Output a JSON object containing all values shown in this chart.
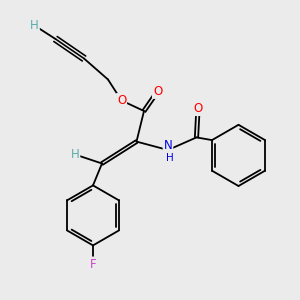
{
  "background_color": "#ebebeb",
  "atom_colors": {
    "C": "#000000",
    "H": "#5aacac",
    "O": "#ff0000",
    "N": "#0000ee",
    "F": "#cc44cc"
  },
  "bond_color": "#000000",
  "bond_width": 1.3,
  "font_size": 8.5
}
